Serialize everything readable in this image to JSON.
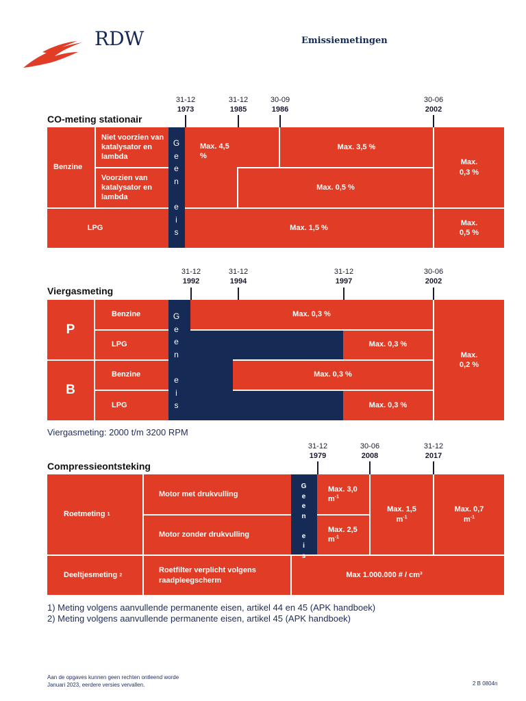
{
  "header": {
    "brand": "RDW",
    "title": "Emissiemetingen"
  },
  "co": {
    "title": "CO-meting stationair",
    "dates": [
      {
        "d": "31-12",
        "y": "1973"
      },
      {
        "d": "31-12",
        "y": "1985"
      },
      {
        "d": "30-09",
        "y": "1986"
      },
      {
        "d": "30-06",
        "y": "2002"
      }
    ],
    "benzine": "Benzine",
    "niet_voorzien": "Niet voorzien van katalysator en lambda",
    "voorzien": "Voorzien van katalysator en lambda",
    "lpg": "LPG",
    "geen": [
      "G",
      "e",
      "e",
      "n",
      "",
      "e",
      "i",
      "s"
    ],
    "max45": "Max. 4,5 %",
    "max35": "Max. 3,5 %",
    "max05": "Max. 0,5 %",
    "max03": "Max. 0,3 %",
    "max15": "Max. 1,5 %",
    "max05b": "Max. 0,5 %"
  },
  "vier": {
    "title": "Viergasmeting",
    "dates": [
      {
        "d": "31-12",
        "y": "1992"
      },
      {
        "d": "31-12",
        "y": "1994"
      },
      {
        "d": "31-12",
        "y": "1997"
      },
      {
        "d": "30-06",
        "y": "2002"
      }
    ],
    "p": "P",
    "b": "B",
    "benzine": "Benzine",
    "lpg": "LPG",
    "geen": [
      "G",
      "e",
      "e",
      "n",
      "",
      "e",
      "i",
      "s"
    ],
    "max03": "Max. 0,3 %",
    "max02": "Max. 0,2 %",
    "note": "Viergasmeting: 2000 t/m 3200 RPM"
  },
  "comp": {
    "title": "Compressieontsteking",
    "dates": [
      {
        "d": "31-12",
        "y": "1979"
      },
      {
        "d": "30-06",
        "y": "2008"
      },
      {
        "d": "31-12",
        "y": "2017"
      }
    ],
    "roet": "Roetmeting",
    "roet_sup": "1",
    "deeltjes": "Deeltjesmeting",
    "deeltjes_sup": "2",
    "met": "Motor met drukvulling",
    "zonder": "Motor zonder drukvulling",
    "roetfilter": "Roetfilter verplicht volgens raadpleegscherm",
    "geen": [
      "G",
      "e",
      "e",
      "n",
      "",
      "e",
      "i",
      "s"
    ],
    "max30": "Max. 3,0 m",
    "max25": "Max. 2,5 m",
    "max15": "Max. 1,5 m",
    "max07": "Max. 0,7 m",
    "exp": "-1",
    "max_particles": "Max 1.000.000 # / cm³"
  },
  "footnotes": [
    "1) Meting volgens aanvullende permanente eisen, artikel 44 en 45 (APK handboek)",
    "2) Meting volgens aanvullende permanente eisen, artikel 45 (APK handboek)"
  ],
  "footer": {
    "line1": "Aan de opgaves kunnen geen rechten ontleend worde",
    "line2": "Januari 2023, eerdere versies vervallen.",
    "code": "2 B 0804n"
  }
}
